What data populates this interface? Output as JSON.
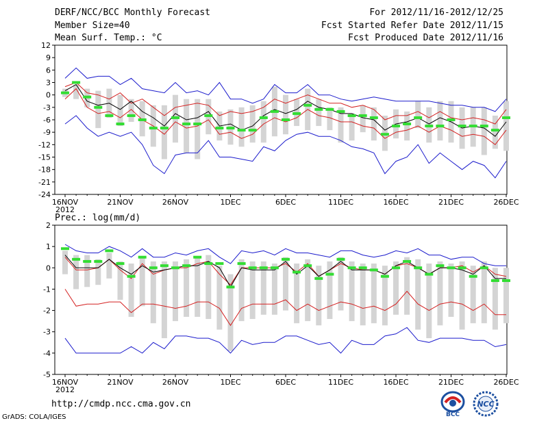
{
  "header": {
    "title": "DERF/NCC/BCC Monthly Forecast",
    "member_size": "Member Size=40",
    "variable": "Mean Surf. Temp.: °C",
    "period": "For 2012/11/16-2012/12/25",
    "started": "Fcst Started Refer Date 2012/11/15",
    "produced": "Fcst Produced Date 2012/11/16"
  },
  "footer": {
    "url": "http://cmdp.ncc.cma.gov.cn",
    "grads": "GrADS: COLA/IGES",
    "logo_bcc": "BCC",
    "logo_ncc": "NCC"
  },
  "colors": {
    "envelope": "#1a1acc",
    "spread": "#d42020",
    "mean": "#000000",
    "box": "#d4d4d4",
    "marker": "#33dd33"
  },
  "chart_data": [
    {
      "type": "box",
      "title": "Mean Surf. Temp.: °C",
      "ylim": [
        -24,
        12
      ],
      "yticks": [
        12,
        9,
        6,
        3,
        0,
        -3,
        -6,
        -9,
        -12,
        -15,
        -18,
        -21,
        -24
      ],
      "xlim": [
        0,
        40
      ],
      "xticks": [
        {
          "day": 0,
          "label": "16NOV",
          "sub": "2012"
        },
        {
          "day": 5,
          "label": "21NOV"
        },
        {
          "day": 10,
          "label": "26NOV"
        },
        {
          "day": 15,
          "label": "1DEC"
        },
        {
          "day": 20,
          "label": "6DEC"
        },
        {
          "day": 25,
          "label": "11DEC"
        },
        {
          "day": 30,
          "label": "16DEC"
        },
        {
          "day": 35,
          "label": "21DEC"
        },
        {
          "day": 40,
          "label": "26DEC"
        }
      ],
      "max": [
        4,
        6.5,
        4,
        4.5,
        4.5,
        2.5,
        4,
        1.5,
        1,
        0.5,
        3,
        0.5,
        1,
        0,
        3,
        -1,
        -1,
        -2,
        -1,
        2.5,
        0.5,
        0.5,
        2.5,
        0,
        0,
        -1,
        -1.5,
        -1,
        -0.5,
        -1,
        -1.5,
        -1.5,
        -1.5,
        -1.5,
        -2,
        -2.5,
        -2.5,
        -3,
        -3,
        -4,
        -1
      ],
      "min": [
        -7,
        -5,
        -8,
        -10,
        -9,
        -10,
        -9,
        -12,
        -17,
        -19,
        -14.5,
        -14,
        -14,
        -11,
        -15,
        -15,
        -15.5,
        -16,
        -12.5,
        -13.5,
        -11,
        -9.5,
        -9,
        -10,
        -10,
        -11,
        -12.5,
        -13,
        -14,
        -19,
        -16,
        -15,
        -12,
        -16.5,
        -14,
        -16,
        -18,
        -16,
        -17,
        -20,
        -16
      ],
      "upper": [
        2,
        3,
        0.5,
        0,
        -1,
        0.5,
        -2,
        -1,
        -3,
        -5,
        -3,
        -2.5,
        -2,
        -2.5,
        -5,
        -4,
        -4.5,
        -4,
        -3,
        -1,
        -2,
        -1,
        0,
        -1,
        -2,
        -2,
        -3,
        -2.5,
        -3.5,
        -6,
        -5,
        -5,
        -4,
        -5.5,
        -4,
        -5.5,
        -6,
        -5.5,
        -6,
        -7,
        -3.5
      ],
      "mean": [
        1,
        2.5,
        -1.5,
        -2.5,
        -2,
        -3.5,
        -1.5,
        -4,
        -5.5,
        -7.5,
        -4.5,
        -6,
        -5.5,
        -4,
        -7.5,
        -7,
        -8.5,
        -7.5,
        -5,
        -3.5,
        -4.5,
        -3.5,
        -1.5,
        -3,
        -3.5,
        -4.5,
        -4.5,
        -5.5,
        -6,
        -8.5,
        -7,
        -6.5,
        -5.5,
        -7,
        -5.5,
        -6.5,
        -8,
        -7.5,
        -8,
        -10,
        -6.5
      ],
      "lower": [
        -1,
        1.5,
        -3,
        -4.5,
        -4,
        -5.5,
        -3.5,
        -6,
        -7.5,
        -9.5,
        -6.5,
        -8,
        -7.5,
        -6,
        -9.5,
        -9,
        -10.5,
        -9.5,
        -7,
        -5.5,
        -6.5,
        -5.5,
        -3.5,
        -5,
        -5.5,
        -6.5,
        -6.5,
        -7.5,
        -8,
        -10.5,
        -9,
        -8.5,
        -7.5,
        -9,
        -7.5,
        -8.5,
        -10,
        -9.5,
        -10,
        -12,
        -8.5
      ],
      "box_top": [
        1.5,
        2.5,
        1.5,
        1,
        1.5,
        0,
        -1,
        -1.5,
        -2.5,
        -2.5,
        0,
        -1,
        -1,
        -1,
        -4,
        -3.5,
        -3,
        -2.5,
        -1.5,
        2,
        0,
        -1,
        1.5,
        -1,
        -3,
        -3,
        -4.5,
        -2.5,
        -3,
        -5,
        -3.5,
        -4,
        -1.5,
        -3,
        -1.5,
        -1.5,
        -3,
        -3,
        -3,
        -5,
        -1.5
      ],
      "box_bottom": [
        -0.5,
        -1,
        -3,
        -8,
        -5.5,
        -7.5,
        -6.5,
        -10,
        -12.5,
        -15.5,
        -11.5,
        -14,
        -15.5,
        -9.5,
        -11,
        -12,
        -12.5,
        -11.5,
        -11.5,
        -10,
        -9.5,
        -7.5,
        -8.5,
        -7.5,
        -8.5,
        -11.5,
        -11,
        -9,
        -11,
        -13.5,
        -10.5,
        -11,
        -8,
        -11.5,
        -11,
        -11.5,
        -13,
        -12.5,
        -14.5,
        -13,
        -13.5
      ],
      "marker": [
        0.5,
        3,
        -0.5,
        -3,
        -5,
        -7,
        -5,
        -6,
        -8,
        -8,
        -5.5,
        -7,
        -7,
        -5,
        -8,
        -8,
        -8.5,
        -8.5,
        -5.5,
        -4,
        -6,
        -4.5,
        -2.5,
        -3.5,
        -3.5,
        -4,
        -5,
        -5,
        -5.5,
        -9.5,
        -7.5,
        -7,
        -5.5,
        -7.5,
        -7.5,
        -6,
        -7.5,
        -7.5,
        -7.5,
        -8.5,
        -5.5
      ]
    },
    {
      "type": "box",
      "title": "Prec.: log(mm/d)",
      "ylim": [
        -5,
        2
      ],
      "yticks": [
        2,
        1,
        0,
        -1,
        -2,
        -3,
        -4,
        -5
      ],
      "xlim": [
        0,
        40
      ],
      "xticks": [
        {
          "day": 0,
          "label": "16NOV",
          "sub": "2012"
        },
        {
          "day": 5,
          "label": "21NOV"
        },
        {
          "day": 10,
          "label": "26NOV"
        },
        {
          "day": 15,
          "label": "1DEC"
        },
        {
          "day": 20,
          "label": "6DEC"
        },
        {
          "day": 25,
          "label": "11DEC"
        },
        {
          "day": 30,
          "label": "16DEC"
        },
        {
          "day": 35,
          "label": "21DEC"
        },
        {
          "day": 40,
          "label": "26DEC"
        }
      ],
      "max": [
        1.1,
        0.8,
        0.7,
        0.7,
        1,
        0.8,
        0.5,
        0.9,
        0.5,
        0.5,
        0.7,
        0.6,
        0.8,
        0.9,
        0.5,
        0.2,
        0.8,
        0.7,
        0.8,
        0.6,
        0.9,
        0.7,
        0.7,
        0.6,
        0.5,
        0.8,
        0.8,
        0.6,
        0.5,
        0.6,
        0.8,
        0.7,
        0.9,
        0.6,
        0.6,
        0.4,
        0.5,
        0.5,
        0.2,
        0.1,
        0.1
      ],
      "min": [
        -3.3,
        -4,
        -4,
        -4,
        -4,
        -4,
        -3.7,
        -4,
        -3.5,
        -3.8,
        -3.2,
        -3.2,
        -3.3,
        -3.3,
        -3.5,
        -4,
        -3.4,
        -3.6,
        -3.5,
        -3.5,
        -3.2,
        -3.2,
        -3.4,
        -3.6,
        -3.5,
        -4,
        -3.4,
        -3.6,
        -3.6,
        -3.2,
        -3.1,
        -2.8,
        -3.4,
        -3.5,
        -3.3,
        -3.3,
        -3.3,
        -3.4,
        -3.4,
        -3.7,
        -3.6
      ],
      "upper": [
        0.5,
        -0.1,
        -0.1,
        0,
        0.4,
        -0.1,
        -0.5,
        0.2,
        -0.3,
        -0.1,
        0,
        0,
        0.2,
        0.3,
        -0.3,
        -0.8,
        0,
        0,
        0,
        0,
        0.2,
        -0.2,
        0.2,
        -0.4,
        -0.1,
        0.2,
        0,
        -0.1,
        -0.1,
        -0.3,
        0.1,
        0.2,
        0,
        -0.3,
        0,
        0,
        0.1,
        -0.2,
        0.1,
        -0.3,
        -0.4
      ],
      "mean": [
        0.6,
        0,
        0,
        0,
        0.4,
        0,
        -0.3,
        0.1,
        -0.2,
        -0.1,
        0,
        0.1,
        0.1,
        0.3,
        0,
        -0.9,
        0,
        -0.1,
        -0.1,
        -0.1,
        0.3,
        -0.3,
        0.1,
        -0.4,
        -0.1,
        0.3,
        -0.1,
        -0.1,
        -0.1,
        -0.3,
        0.1,
        0.3,
        0,
        -0.3,
        0,
        0,
        -0.1,
        -0.3,
        0.1,
        -0.5,
        -0.5
      ],
      "lower": [
        -1,
        -1.8,
        -1.7,
        -1.7,
        -1.6,
        -1.6,
        -2.1,
        -1.7,
        -1.7,
        -1.8,
        -1.9,
        -1.8,
        -1.6,
        -1.6,
        -1.9,
        -2.7,
        -1.9,
        -1.7,
        -1.7,
        -1.7,
        -1.5,
        -2,
        -1.7,
        -2,
        -1.8,
        -1.6,
        -1.7,
        -1.9,
        -1.8,
        -2,
        -1.7,
        -1.1,
        -1.7,
        -2,
        -1.7,
        -1.6,
        -1.7,
        -2,
        -1.7,
        -2.2,
        -2.2
      ],
      "box_top": [
        0.8,
        0.6,
        0.6,
        0.4,
        0.7,
        0.3,
        0.2,
        0.5,
        0.3,
        0.3,
        0.3,
        0.4,
        0.5,
        0.6,
        0.1,
        -0.3,
        0.4,
        0.3,
        0.3,
        0.2,
        0.5,
        0.2,
        0.4,
        0.1,
        0.3,
        0.5,
        0.3,
        0.2,
        0.2,
        0.1,
        0.3,
        0.5,
        0.4,
        0.2,
        0.3,
        0.2,
        0.3,
        0.1,
        0.3,
        0,
        0
      ],
      "box_bottom": [
        -0.3,
        -1,
        -0.9,
        -0.8,
        -0.5,
        -1.5,
        -2.3,
        -1.8,
        -2.6,
        -3.3,
        -2.5,
        -2.3,
        -2.3,
        -2.4,
        -2.9,
        -3.9,
        -2.5,
        -2.4,
        -2.2,
        -2.2,
        -2,
        -2.6,
        -2.5,
        -2.7,
        -2.4,
        -2,
        -2.5,
        -2.7,
        -2.6,
        -2.7,
        -2.2,
        -2.2,
        -2.9,
        -3.3,
        -2.7,
        -2.3,
        -2.9,
        -2.6,
        -2.6,
        -2.9,
        -2.6
      ],
      "marker": [
        0.9,
        0.4,
        0.3,
        0.3,
        0.8,
        0.2,
        -0.4,
        0.5,
        0,
        0.1,
        0,
        0.1,
        0.5,
        0.2,
        0.2,
        -0.9,
        0.2,
        0,
        0,
        0,
        0.4,
        -0.2,
        0.1,
        -0.5,
        -0.3,
        0.4,
        0,
        0,
        -0.1,
        -0.4,
        0,
        0.3,
        0,
        -0.3,
        0.1,
        0,
        0,
        -0.4,
        0,
        -0.6,
        -0.6
      ]
    }
  ]
}
